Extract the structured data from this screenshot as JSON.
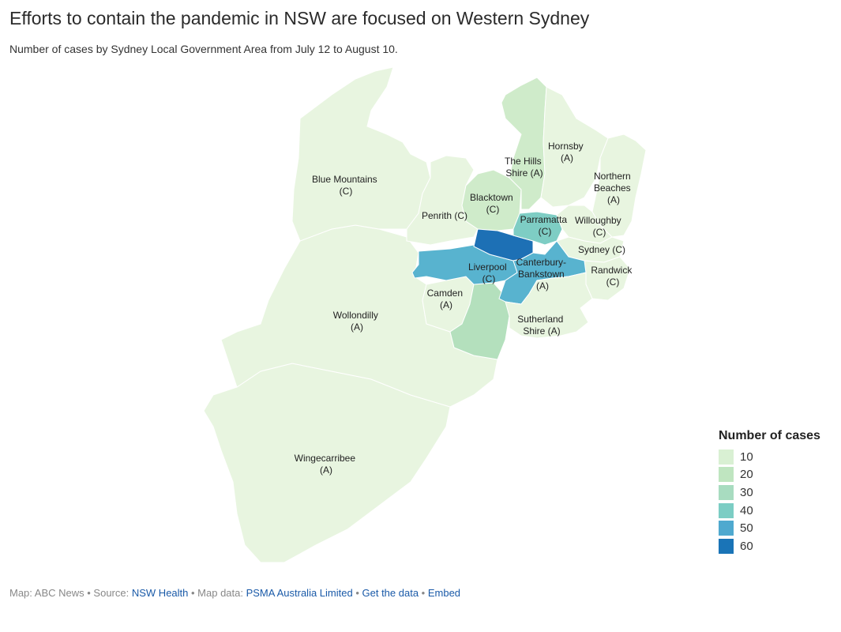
{
  "title": "Efforts to contain the pandemic in NSW are focused on Western Sydney",
  "subtitle": "Number of cases by Sydney Local Government Area from July 12 to August 10.",
  "colors": {
    "c10": "#e8f5e0",
    "c20": "#cfebca",
    "c30": "#b4e0bd",
    "c40": "#7ecdc4",
    "c50": "#58b3cf",
    "c60": "#1d70b5"
  },
  "regions": [
    {
      "label1": "Blue Mountains",
      "label2": "(C)",
      "level": "c10"
    },
    {
      "label1": "Penrith (C)",
      "label2": "",
      "level": "c10"
    },
    {
      "label1": "Blacktown",
      "label2": "(C)",
      "level": "c20"
    },
    {
      "label1": "The Hills",
      "label2": "Shire (A)",
      "level": "c20"
    },
    {
      "label1": "Hornsby",
      "label2": "(A)",
      "level": "c10"
    },
    {
      "label1": "Northern",
      "label2": "Beaches",
      "label3": "(A)",
      "level": "c10"
    },
    {
      "label1": "Parramatta",
      "label2": "(C)",
      "level": "c40"
    },
    {
      "label1": "Willoughby",
      "label2": "(C)",
      "level": "c10"
    },
    {
      "label1": "Sydney (C)",
      "label2": "",
      "level": "c10"
    },
    {
      "label1": "Randwick",
      "label2": "(C)",
      "level": "c10"
    },
    {
      "label1": "Canterbury-",
      "label2": "Bankstown",
      "label3": "(A)",
      "level": "c50"
    },
    {
      "label1": "Liverpool",
      "label2": "(C)",
      "level": "c50"
    },
    {
      "label1": "Camden",
      "label2": "(A)",
      "level": "c10"
    },
    {
      "label1": "Sutherland",
      "label2": "Shire (A)",
      "level": "c10"
    },
    {
      "label1": "Wollondilly",
      "label2": "(A)",
      "level": "c10"
    },
    {
      "label1": "Wingecarribee",
      "label2": "(A)",
      "level": "c10"
    },
    {
      "label1": "",
      "label2": "",
      "level": "c60"
    },
    {
      "label1": "",
      "label2": "",
      "level": "c30"
    }
  ],
  "legend": {
    "title": "Number of cases",
    "items": [
      {
        "label": "10",
        "color": "#d9f0d3"
      },
      {
        "label": "20",
        "color": "#bfe5c0"
      },
      {
        "label": "30",
        "color": "#a8dcc0"
      },
      {
        "label": "40",
        "color": "#7ccdc4"
      },
      {
        "label": "50",
        "color": "#4fa9cf"
      },
      {
        "label": "60",
        "color": "#1a74b7"
      }
    ]
  },
  "footer": {
    "map_credit": "Map: ABC News",
    "sep1": " • Source: ",
    "source_link": "NSW Health",
    "sep2": " • Map data: ",
    "mapdata_link": "PSMA Australia Limited",
    "sep3": " • ",
    "data_link": "Get the data",
    "sep4": " • ",
    "embed_link": "Embed"
  }
}
